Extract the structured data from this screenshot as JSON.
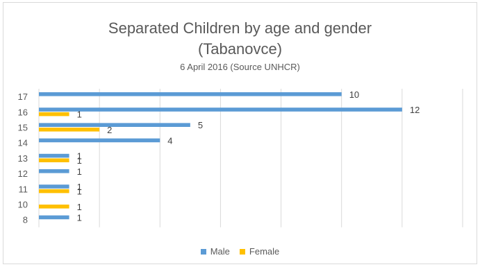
{
  "chart_data": {
    "type": "bar",
    "orientation": "horizontal",
    "title_lines": [
      "Separated Children by age and gender",
      "(Tabanovce)"
    ],
    "subtitle": "6 April 2016 (Source UNHCR)",
    "categories": [
      "17",
      "16",
      "15",
      "14",
      "13",
      "12",
      "11",
      "10",
      "8"
    ],
    "series": [
      {
        "name": "Male",
        "color": "#5b9bd5",
        "values": [
          10,
          12,
          5,
          4,
          1,
          1,
          1,
          null,
          1
        ]
      },
      {
        "name": "Female",
        "color": "#ffc000",
        "values": [
          null,
          1,
          2,
          null,
          1,
          null,
          1,
          1,
          null
        ]
      }
    ],
    "xlim": [
      0,
      14
    ],
    "grid": "vertical",
    "legend_position": "bottom"
  }
}
